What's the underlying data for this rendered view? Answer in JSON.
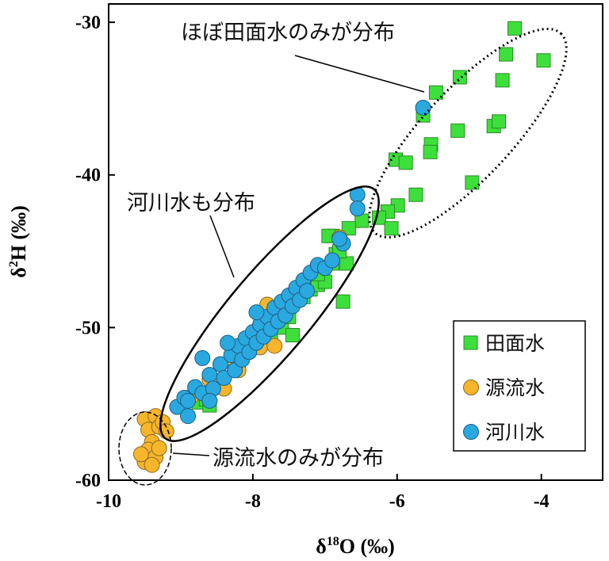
{
  "chart_data": {
    "type": "scatter",
    "xlabel": {
      "pre": "δ",
      "sup": "18",
      "post": "O (‰)"
    },
    "ylabel": {
      "pre": "δ",
      "sup": "2",
      "post": "H (‰)"
    },
    "xlim": [
      -10,
      -3.15
    ],
    "ylim": [
      -60,
      -28.8
    ],
    "xticks": [
      -10,
      -8,
      -6,
      -4
    ],
    "yticks": [
      -30,
      -40,
      -50,
      -60
    ],
    "grid": false,
    "legend_position": "bottom-right",
    "annotations": [
      "ほぼ田面水のみが分布",
      "河川水も分布",
      "源流水のみが分布"
    ],
    "series": [
      {
        "name": "田面水",
        "marker": "square",
        "color": "#3de03a",
        "points": [
          [
            -4.37,
            -30.4
          ],
          [
            -4.49,
            -32.1
          ],
          [
            -3.97,
            -32.5
          ],
          [
            -5.13,
            -33.6
          ],
          [
            -4.54,
            -33.8
          ],
          [
            -5.46,
            -34.6
          ],
          [
            -5.64,
            -36.1
          ],
          [
            -5.16,
            -37.1
          ],
          [
            -4.66,
            -36.8
          ],
          [
            -4.59,
            -36.5
          ],
          [
            -5.53,
            -38.0
          ],
          [
            -5.54,
            -38.5
          ],
          [
            -6.02,
            -39.0
          ],
          [
            -5.88,
            -39.2
          ],
          [
            -4.96,
            -40.5
          ],
          [
            -5.74,
            -41.3
          ],
          [
            -5.99,
            -42.0
          ],
          [
            -6.13,
            -42.4
          ],
          [
            -6.25,
            -42.8
          ],
          [
            -6.08,
            -43.5
          ],
          [
            -6.49,
            -43.0
          ],
          [
            -6.67,
            -43.5
          ],
          [
            -6.89,
            -44.0
          ],
          [
            -8.75,
            -54.9
          ],
          [
            -8.65,
            -54.7
          ],
          [
            -8.6,
            -55.1
          ],
          [
            -8.0,
            -51.0
          ],
          [
            -7.75,
            -50.6
          ],
          [
            -7.6,
            -50.0
          ],
          [
            -7.5,
            -49.3
          ],
          [
            -7.45,
            -50.5
          ],
          [
            -7.3,
            -48.0
          ],
          [
            -7.2,
            -47.5
          ],
          [
            -7.1,
            -47.2
          ],
          [
            -7.0,
            -47.0
          ],
          [
            -6.9,
            -45.8
          ],
          [
            -6.85,
            -45.2
          ],
          [
            -6.75,
            -48.3
          ],
          [
            -6.7,
            -45.8
          ],
          [
            -6.8,
            -45.0
          ],
          [
            -6.95,
            -44.0
          ],
          [
            -7.1,
            -46.5
          ]
        ]
      },
      {
        "name": "源流水",
        "marker": "circle",
        "color": "#f7b52c",
        "points": [
          [
            -9.5,
            -56.0
          ],
          [
            -9.45,
            -56.7
          ],
          [
            -9.35,
            -55.8
          ],
          [
            -9.3,
            -56.5
          ],
          [
            -9.25,
            -56.2
          ],
          [
            -9.4,
            -57.5
          ],
          [
            -9.45,
            -58.0
          ],
          [
            -9.5,
            -58.8
          ],
          [
            -9.55,
            -58.3
          ],
          [
            -9.35,
            -58.5
          ],
          [
            -9.4,
            -59.0
          ],
          [
            -9.3,
            -57.9
          ],
          [
            -9.2,
            -56.8
          ],
          [
            -8.85,
            -54.5
          ],
          [
            -8.6,
            -53.4
          ],
          [
            -8.4,
            -54.0
          ],
          [
            -8.2,
            -52.8
          ],
          [
            -7.9,
            -51.3
          ],
          [
            -7.7,
            -51.2
          ],
          [
            -7.8,
            -48.5
          ],
          [
            -6.8,
            -44.1
          ],
          [
            -8.3,
            -52.0
          ]
        ]
      },
      {
        "name": "河川水",
        "marker": "circle",
        "color": "#2aa8e0",
        "points": [
          [
            -5.64,
            -35.6
          ],
          [
            -6.55,
            -41.3
          ],
          [
            -6.55,
            -42.2
          ],
          [
            -9.05,
            -55.2
          ],
          [
            -8.95,
            -54.6
          ],
          [
            -8.9,
            -55.8
          ],
          [
            -8.8,
            -53.9
          ],
          [
            -8.7,
            -54.3
          ],
          [
            -8.6,
            -53.1
          ],
          [
            -8.55,
            -54.0
          ],
          [
            -8.45,
            -52.4
          ],
          [
            -8.4,
            -53.3
          ],
          [
            -8.3,
            -51.8
          ],
          [
            -8.25,
            -52.8
          ],
          [
            -8.2,
            -51.2
          ],
          [
            -8.15,
            -52.1
          ],
          [
            -8.1,
            -50.7
          ],
          [
            -8.05,
            -51.6
          ],
          [
            -8.0,
            -50.3
          ],
          [
            -7.95,
            -51.0
          ],
          [
            -7.9,
            -49.8
          ],
          [
            -7.85,
            -50.6
          ],
          [
            -7.8,
            -49.3
          ],
          [
            -7.75,
            -50.1
          ],
          [
            -7.7,
            -48.7
          ],
          [
            -7.65,
            -49.6
          ],
          [
            -7.6,
            -48.3
          ],
          [
            -7.55,
            -49.2
          ],
          [
            -7.5,
            -47.9
          ],
          [
            -7.45,
            -48.6
          ],
          [
            -7.4,
            -47.4
          ],
          [
            -7.35,
            -48.2
          ],
          [
            -7.3,
            -46.9
          ],
          [
            -7.25,
            -47.6
          ],
          [
            -7.2,
            -46.4
          ],
          [
            -7.1,
            -45.9
          ],
          [
            -7.0,
            -46.1
          ],
          [
            -6.9,
            -45.6
          ],
          [
            -6.75,
            -44.5
          ],
          [
            -6.8,
            -44.2
          ],
          [
            -8.7,
            -52.0
          ],
          [
            -8.35,
            -51.0
          ],
          [
            -7.95,
            -49.0
          ],
          [
            -8.6,
            -54.8
          ],
          [
            -8.9,
            -54.8
          ]
        ]
      }
    ]
  }
}
